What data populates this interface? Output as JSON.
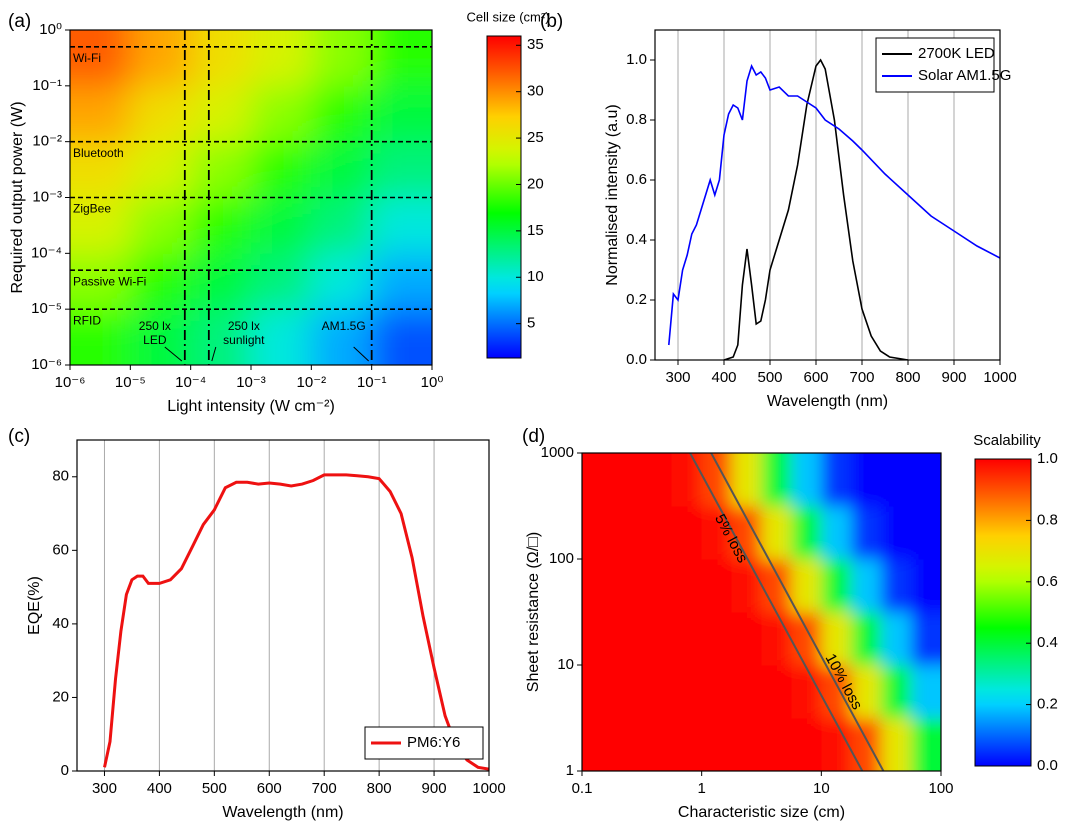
{
  "chart_data": [
    {
      "type": "heatmap",
      "panel": "(a)",
      "xlabel": "Light intensity (W cm⁻²)",
      "ylabel": "Required output power (W)",
      "colorbar_label": "Cell size (cm²)",
      "xscale": "log",
      "yscale": "log",
      "xlim": [
        1e-06,
        1
      ],
      "ylim": [
        1e-06,
        1
      ],
      "xticks": [
        {
          "value": 1e-06,
          "label": "10⁻⁶"
        },
        {
          "value": 1e-05,
          "label": "10⁻⁵"
        },
        {
          "value": 0.0001,
          "label": "10⁻⁴"
        },
        {
          "value": 0.001,
          "label": "10⁻³"
        },
        {
          "value": 0.01,
          "label": "10⁻²"
        },
        {
          "value": 0.1,
          "label": "10⁻¹"
        },
        {
          "value": 1,
          "label": "10⁰"
        }
      ],
      "yticks": [
        {
          "value": 1e-06,
          "label": "10⁻⁶"
        },
        {
          "value": 1e-05,
          "label": "10⁻⁵"
        },
        {
          "value": 0.0001,
          "label": "10⁻⁴"
        },
        {
          "value": 0.001,
          "label": "10⁻³"
        },
        {
          "value": 0.01,
          "label": "10⁻²"
        },
        {
          "value": 0.1,
          "label": "10⁻¹"
        },
        {
          "value": 1,
          "label": "10⁰"
        }
      ],
      "xbins": [
        1e-06,
        1e-05,
        0.0001,
        0.001,
        0.01,
        0.1,
        1
      ],
      "ybins": [
        1e-06,
        1e-05,
        0.0001,
        0.001,
        0.01,
        0.1,
        1
      ],
      "z": [
        [
          18,
          15,
          13,
          10,
          7,
          4
        ],
        [
          21,
          18,
          15,
          13,
          10,
          7
        ],
        [
          24,
          21,
          18,
          15,
          13,
          10
        ],
        [
          26,
          24,
          21,
          18,
          15,
          13
        ],
        [
          29,
          26,
          24,
          21,
          18,
          15
        ],
        [
          32,
          29,
          26,
          24,
          21,
          18
        ]
      ],
      "zlim": [
        1.3,
        36
      ],
      "zticks": [
        5,
        10,
        15,
        20,
        25,
        30,
        35
      ],
      "hlines": [
        {
          "value": 0.5,
          "label": "Wi-Fi"
        },
        {
          "value": 0.01,
          "label": "Bluetooth"
        },
        {
          "value": 0.001,
          "label": "ZigBee"
        },
        {
          "value": 5e-05,
          "label": "Passive Wi-Fi"
        },
        {
          "value": 1e-05,
          "label": "RFID"
        }
      ],
      "vlines": [
        {
          "value": 8e-05,
          "label": [
            "250 lx",
            "LED"
          ]
        },
        {
          "value": 0.0002,
          "label": [
            "250 lx",
            "sunlight"
          ]
        },
        {
          "value": 0.1,
          "label": [
            "AM1.5G"
          ]
        }
      ]
    },
    {
      "type": "line",
      "panel": "(b)",
      "xlabel": "Wavelength (nm)",
      "ylabel": "Normalised intensity (a.u)",
      "xlim": [
        250,
        1000
      ],
      "ylim": [
        0,
        1.1
      ],
      "xticks": [
        300,
        400,
        500,
        600,
        700,
        800,
        900,
        1000
      ],
      "yticks": [
        {
          "value": 0,
          "label": "0.0"
        },
        0.2,
        0.4,
        0.6,
        0.8,
        {
          "value": 1,
          "label": "1.0"
        }
      ],
      "grid": "x",
      "legend": "upper right",
      "series": [
        {
          "name": "2700K LED",
          "color": "#000000",
          "x": [
            400,
            420,
            430,
            440,
            450,
            460,
            470,
            480,
            490,
            500,
            520,
            540,
            560,
            580,
            600,
            610,
            620,
            640,
            660,
            680,
            700,
            720,
            740,
            760,
            800
          ],
          "y": [
            0,
            0.01,
            0.05,
            0.25,
            0.37,
            0.25,
            0.12,
            0.13,
            0.2,
            0.3,
            0.4,
            0.5,
            0.65,
            0.85,
            0.98,
            1.0,
            0.97,
            0.8,
            0.55,
            0.33,
            0.17,
            0.08,
            0.03,
            0.01,
            0
          ]
        },
        {
          "name": "Solar AM1.5G",
          "color": "#0000ff",
          "x": [
            280,
            290,
            300,
            310,
            320,
            330,
            340,
            350,
            360,
            370,
            380,
            390,
            400,
            410,
            420,
            430,
            440,
            450,
            460,
            470,
            480,
            490,
            500,
            520,
            540,
            560,
            580,
            600,
            620,
            650,
            680,
            700,
            750,
            800,
            850,
            900,
            950,
            1000
          ],
          "y": [
            0.05,
            0.22,
            0.2,
            0.3,
            0.35,
            0.42,
            0.45,
            0.5,
            0.55,
            0.6,
            0.55,
            0.6,
            0.75,
            0.82,
            0.85,
            0.84,
            0.8,
            0.93,
            0.98,
            0.95,
            0.96,
            0.94,
            0.9,
            0.91,
            0.88,
            0.88,
            0.86,
            0.84,
            0.8,
            0.77,
            0.73,
            0.7,
            0.62,
            0.55,
            0.48,
            0.43,
            0.38,
            0.34
          ]
        }
      ]
    },
    {
      "type": "line",
      "panel": "(c)",
      "xlabel": "Wavelength (nm)",
      "ylabel": "EQE(%)",
      "xlim": [
        250,
        1000
      ],
      "ylim": [
        0,
        90
      ],
      "xticks": [
        300,
        400,
        500,
        600,
        700,
        800,
        900,
        1000
      ],
      "yticks": [
        0,
        20,
        40,
        60,
        80
      ],
      "grid": "x",
      "legend": "lower right",
      "series": [
        {
          "name": "PM6:Y6",
          "color": "#ee1111",
          "x": [
            300,
            310,
            320,
            330,
            340,
            350,
            360,
            370,
            380,
            400,
            420,
            440,
            460,
            480,
            500,
            520,
            540,
            560,
            580,
            600,
            620,
            640,
            660,
            680,
            700,
            720,
            740,
            760,
            780,
            800,
            820,
            840,
            860,
            880,
            900,
            920,
            940,
            960,
            980,
            1000
          ],
          "y": [
            1,
            8,
            25,
            38,
            48,
            52,
            53,
            53,
            51,
            51,
            52,
            55,
            61,
            67,
            71,
            77,
            78.5,
            78.5,
            78,
            78.3,
            78,
            77.5,
            78,
            79,
            80.5,
            80.5,
            80.5,
            80.3,
            80,
            79.5,
            76,
            70,
            58,
            42,
            28,
            15,
            7,
            3,
            1,
            0.5
          ]
        }
      ]
    },
    {
      "type": "heatmap",
      "panel": "(d)",
      "xlabel": "Characteristic size (cm)",
      "ylabel": "Sheet resistance (Ω/□)",
      "colorbar_label": "Scalability",
      "xscale": "log",
      "yscale": "log",
      "xlim": [
        0.1,
        100
      ],
      "ylim": [
        1,
        1000
      ],
      "xticks": [
        0.1,
        1,
        10,
        100
      ],
      "yticks": [
        1,
        10,
        100,
        1000
      ],
      "xbins": [
        0.1,
        0.178,
        0.316,
        0.562,
        1,
        1.78,
        3.16,
        5.62,
        10,
        17.8,
        31.6,
        56.2,
        100
      ],
      "ybins": [
        1,
        3.16,
        10,
        31.6,
        100,
        316,
        1000
      ],
      "z": [
        [
          1,
          1,
          1,
          1,
          1,
          1,
          1,
          1,
          0.98,
          0.91,
          0.69,
          0.4
        ],
        [
          1,
          1,
          1,
          1,
          1,
          1,
          1,
          0.98,
          0.91,
          0.69,
          0.4,
          0.19
        ],
        [
          1,
          1,
          1,
          1,
          1,
          1,
          0.98,
          0.91,
          0.69,
          0.4,
          0.19,
          0.05
        ],
        [
          1,
          1,
          1,
          1,
          1,
          0.98,
          0.91,
          0.69,
          0.4,
          0.19,
          0.05,
          0
        ],
        [
          1,
          1,
          1,
          1,
          0.98,
          0.91,
          0.69,
          0.4,
          0.19,
          0.05,
          0,
          0
        ],
        [
          1,
          1,
          1,
          0.98,
          0.91,
          0.69,
          0.4,
          0.19,
          0.05,
          0,
          0,
          0
        ]
      ],
      "zlim": [
        0,
        1
      ],
      "zticks": [
        {
          "value": 0,
          "label": "0.0"
        },
        0.2,
        0.4,
        0.6,
        0.8,
        {
          "value": 1,
          "label": "1.0"
        }
      ],
      "contours": [
        {
          "label": "5% loss",
          "x": [
            0.8,
            22
          ],
          "y": [
            1000,
            1
          ]
        },
        {
          "label": "10% loss",
          "x": [
            1.2,
            33
          ],
          "y": [
            1000,
            1
          ]
        }
      ]
    }
  ]
}
